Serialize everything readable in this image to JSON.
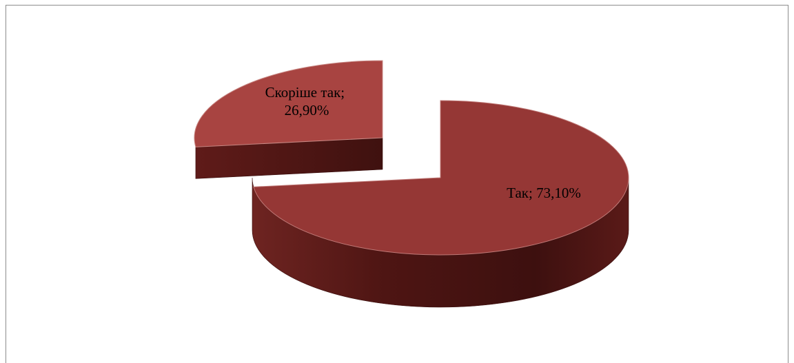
{
  "chart_data": {
    "type": "pie",
    "style": "3d-exploded",
    "title": "",
    "slices": [
      {
        "label": "Так",
        "value": 73.1,
        "display": "Так; 73,10%",
        "color": "#953735"
      },
      {
        "label": "Скоріше так",
        "value": 26.9,
        "display_lines": [
          "Скоріше так;",
          "26,90%"
        ],
        "color": "#a84441"
      }
    ],
    "side_color": "#5a1a18",
    "legend": "none"
  }
}
